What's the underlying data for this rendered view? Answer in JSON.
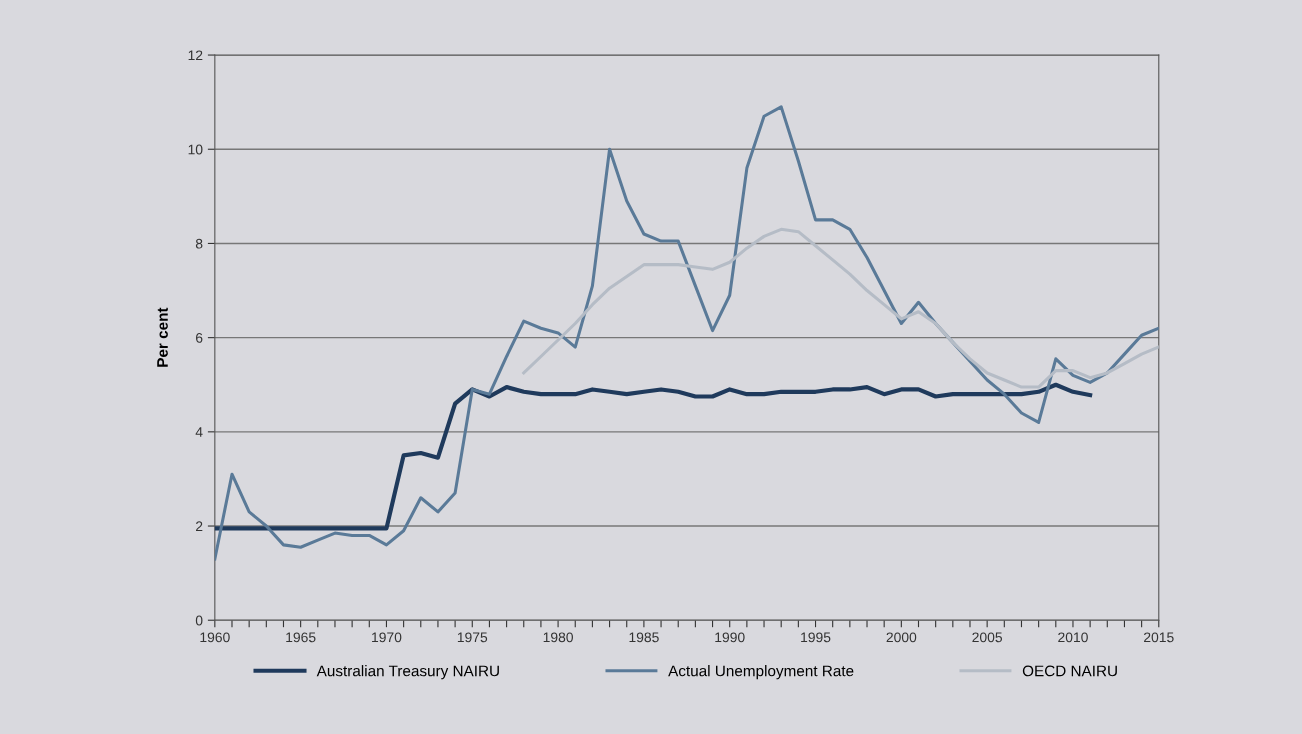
{
  "chart_data": {
    "type": "line",
    "ylabel": "Per cent",
    "x": [
      1960,
      1961,
      1962,
      1963,
      1964,
      1965,
      1966,
      1967,
      1968,
      1969,
      1970,
      1971,
      1972,
      1973,
      1974,
      1975,
      1976,
      1977,
      1978,
      1979,
      1980,
      1981,
      1982,
      1983,
      1984,
      1985,
      1986,
      1987,
      1988,
      1989,
      1990,
      1991,
      1992,
      1993,
      1994,
      1995,
      1996,
      1997,
      1998,
      1999,
      2000,
      2001,
      2002,
      2003,
      2004,
      2005,
      2006,
      2007,
      2008,
      2009,
      2010,
      2011,
      2012,
      2013,
      2014,
      2015
    ],
    "series": [
      {
        "name": "Australian Treasury NAIRU",
        "color": "#1f3a5c",
        "values": [
          1.95,
          1.95,
          1.95,
          1.95,
          1.95,
          1.95,
          1.95,
          1.95,
          1.95,
          1.95,
          1.95,
          3.5,
          3.55,
          3.45,
          4.6,
          4.9,
          4.75,
          4.95,
          4.85,
          4.8,
          4.8,
          4.8,
          4.9,
          4.85,
          4.8,
          4.85,
          4.9,
          4.85,
          4.75,
          4.75,
          4.9,
          4.8,
          4.8,
          4.85,
          4.85,
          4.85,
          4.9,
          4.9,
          4.95,
          4.8,
          4.9,
          4.9,
          4.75,
          4.8,
          4.8,
          4.8,
          4.8,
          4.8,
          4.85,
          5.0,
          4.85,
          4.78,
          null,
          null,
          null,
          null
        ]
      },
      {
        "name": "Actual Unemployment Rate",
        "color": "#5a7a98",
        "values": [
          1.3,
          3.1,
          2.3,
          2.0,
          1.6,
          1.55,
          1.7,
          1.85,
          1.8,
          1.8,
          1.6,
          1.9,
          2.6,
          2.3,
          2.7,
          4.9,
          4.8,
          5.6,
          6.35,
          6.2,
          6.1,
          5.8,
          7.1,
          10.0,
          8.9,
          8.2,
          8.05,
          8.05,
          7.1,
          6.15,
          6.9,
          9.6,
          10.7,
          10.9,
          9.75,
          8.5,
          8.5,
          8.3,
          7.7,
          7.0,
          6.3,
          6.75,
          6.3,
          5.9,
          5.5,
          5.1,
          4.8,
          4.4,
          4.2,
          5.55,
          5.2,
          5.05,
          5.25,
          5.65,
          6.05,
          6.2
        ]
      },
      {
        "name": "OECD NAIRU",
        "color": "#b5bcc6",
        "values": [
          null,
          null,
          null,
          null,
          null,
          null,
          null,
          null,
          null,
          null,
          null,
          null,
          null,
          null,
          null,
          null,
          null,
          null,
          5.25,
          5.6,
          5.95,
          6.3,
          6.7,
          7.05,
          7.3,
          7.55,
          7.55,
          7.55,
          7.5,
          7.45,
          7.6,
          7.9,
          8.15,
          8.3,
          8.25,
          7.95,
          7.65,
          7.35,
          7.0,
          6.7,
          6.4,
          6.55,
          6.3,
          5.9,
          5.55,
          5.25,
          5.1,
          4.95,
          4.95,
          5.3,
          5.3,
          5.15,
          5.25,
          5.45,
          5.65,
          5.8
        ]
      }
    ],
    "xlim": [
      1960,
      2015
    ],
    "xticks": [
      1960,
      {
        "value": 1961,
        "label": null
      },
      {
        "value": 1962,
        "label": null
      },
      {
        "value": 1963,
        "label": null
      },
      {
        "value": 1964,
        "label": null
      },
      1965,
      {
        "value": 1966,
        "label": null
      },
      {
        "value": 1967,
        "label": null
      },
      {
        "value": 1968,
        "label": null
      },
      {
        "value": 1969,
        "label": null
      },
      1970,
      {
        "value": 1971,
        "label": null
      },
      {
        "value": 1972,
        "label": null
      },
      {
        "value": 1973,
        "label": null
      },
      {
        "value": 1974,
        "label": null
      },
      1975,
      {
        "value": 1976,
        "label": null
      },
      {
        "value": 1977,
        "label": null
      },
      {
        "value": 1978,
        "label": null
      },
      {
        "value": 1979,
        "label": null
      },
      1980,
      {
        "value": 1981,
        "label": null
      },
      {
        "value": 1982,
        "label": null
      },
      {
        "value": 1983,
        "label": null
      },
      {
        "value": 1984,
        "label": null
      },
      1985,
      {
        "value": 1986,
        "label": null
      },
      {
        "value": 1987,
        "label": null
      },
      {
        "value": 1988,
        "label": null
      },
      {
        "value": 1989,
        "label": null
      },
      1990,
      {
        "value": 1991,
        "label": null
      },
      {
        "value": 1992,
        "label": null
      },
      {
        "value": 1993,
        "label": null
      },
      {
        "value": 1994,
        "label": null
      },
      1995,
      {
        "value": 1996,
        "label": null
      },
      {
        "value": 1997,
        "label": null
      },
      {
        "value": 1998,
        "label": null
      },
      {
        "value": 1999,
        "label": null
      },
      2000,
      {
        "value": 2001,
        "label": null
      },
      {
        "value": 2002,
        "label": null
      },
      {
        "value": 2003,
        "label": null
      },
      {
        "value": 2004,
        "label": null
      },
      2005,
      {
        "value": 2006,
        "label": null
      },
      {
        "value": 2007,
        "label": null
      },
      {
        "value": 2008,
        "label": null
      },
      {
        "value": 2009,
        "label": null
      },
      2010,
      {
        "value": 2011,
        "label": null
      },
      {
        "value": 2012,
        "label": null
      },
      {
        "value": 2013,
        "label": null
      },
      {
        "value": 2014,
        "label": null
      },
      2015
    ],
    "ylim": [
      0,
      12
    ],
    "yticks": [
      0,
      2,
      4,
      6,
      8,
      10,
      12
    ],
    "grid": "y",
    "legend": "bottom",
    "marker": "none",
    "line_style": "solid"
  }
}
